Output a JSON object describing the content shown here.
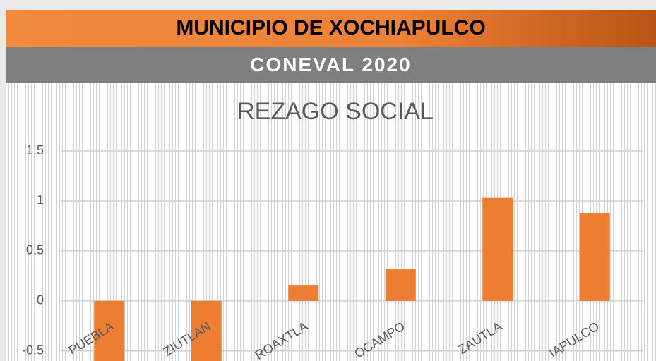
{
  "header": {
    "title": "MUNICIPIO DE XOCHIAPULCO",
    "subtitle": "CONEVAL 2020"
  },
  "chart_data": {
    "type": "bar",
    "title": "REZAGO SOCIAL",
    "categories": [
      "PUEBLA",
      "ZIUTLAN",
      "ROAXTLA",
      "OCAMPO",
      "ZAUTLA",
      "IAPULCO"
    ],
    "values": [
      -0.6,
      -0.6,
      0.16,
      0.32,
      1.03,
      0.88
    ],
    "color": "#ed7d31",
    "ylim": [
      -0.6,
      1.5
    ],
    "yticks": [
      1.5,
      1,
      0.5,
      0,
      -0.5
    ],
    "grid": true
  }
}
